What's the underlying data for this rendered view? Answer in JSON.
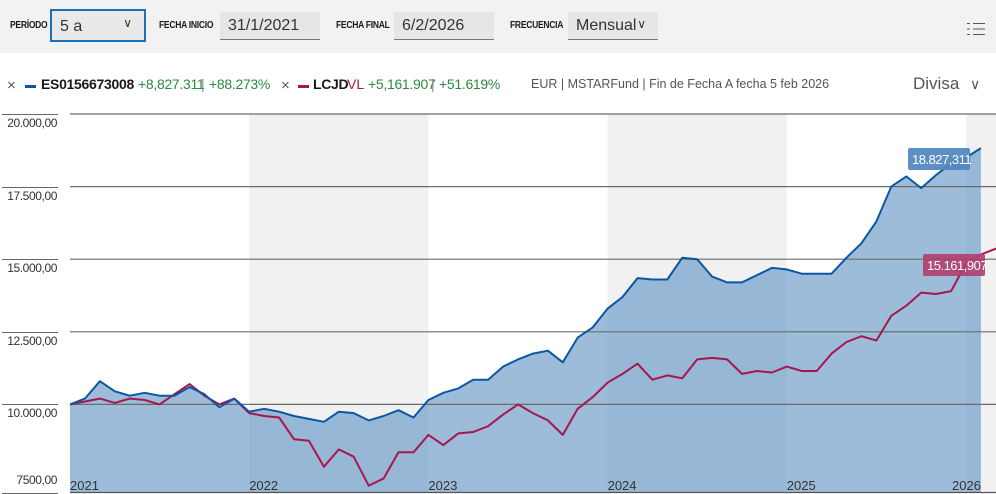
{
  "toolbar": {
    "periodo_label": "PERÍODO",
    "periodo_value": "5 a",
    "fecha_inicio_label": "FECHA INICIO",
    "fecha_inicio_value": "31/1/2021",
    "fecha_final_label": "FECHA FINAL",
    "fecha_final_value": "6/2/2026",
    "frecuencia_label": "FRECUENCIA",
    "frecuencia_value": "Mensual",
    "chevron": "∨",
    "menu_icon": "list-menu-icon"
  },
  "legend": {
    "remove_glyph": "×",
    "series": [
      {
        "name": "ES0156673008",
        "suffix": "",
        "change_abs": "+8,827.311",
        "change_pct": "+88.273%",
        "color": "#0b57a4"
      },
      {
        "name": "LCJD",
        "suffix": "VL",
        "change_abs": "+5,161.907",
        "change_pct": "+51.619%",
        "color": "#a8174b"
      }
    ],
    "separator": "|",
    "info": "EUR | MSTARFund | Fin de Fecha A fecha 5 feb 2026",
    "divisa_label": "Divisa",
    "divisa_chevron": "∨"
  },
  "colors": {
    "blue_line": "#0b57a4",
    "red_line": "#a8174b",
    "area_fill": "#97b8d8",
    "band": "#f1f1f1",
    "blue_tag": "#4f86bf",
    "red_tag": "#b0416f",
    "positive": "#2a8a3e"
  },
  "chart_data": {
    "type": "line",
    "title": "",
    "xlabel": "",
    "ylabel": "",
    "frequency": "monthly",
    "x_start": "2021-01",
    "x_end": "2026-02",
    "x_tick_labels": [
      "2021",
      "2022",
      "2023",
      "2024",
      "2025",
      "2026"
    ],
    "y_tick_labels": [
      "7500,00",
      "10.000,00",
      "12.500,00",
      "15.000,00",
      "17.500,00",
      "20.000,00"
    ],
    "y_ticks": [
      7500,
      10000,
      12500,
      15000,
      17500,
      20000
    ],
    "ylim": [
      7000,
      20000
    ],
    "grid": true,
    "legend_position": "top",
    "series": [
      {
        "name": "ES0156673008",
        "color": "#0b57a4",
        "filled_area": true,
        "end_label": "18.827,311",
        "values": [
          10000,
          10200,
          10800,
          10450,
          10300,
          10400,
          10300,
          10300,
          10600,
          10350,
          9900,
          10200,
          9750,
          9850,
          9750,
          9600,
          9500,
          9400,
          9750,
          9700,
          9450,
          9600,
          9800,
          9550,
          10150,
          10400,
          10550,
          10850,
          10850,
          11300,
          11550,
          11750,
          11850,
          11450,
          12300,
          12650,
          13300,
          13700,
          14350,
          14300,
          14300,
          15050,
          15000,
          14400,
          14200,
          14200,
          14450,
          14700,
          14650,
          14500,
          14500,
          14500,
          15050,
          15550,
          16300,
          17500,
          17850,
          17450,
          17900,
          18300,
          18500,
          18827
        ]
      },
      {
        "name": "LCJD VL",
        "color": "#a8174b",
        "filled_area": false,
        "end_label": "15.161,907",
        "values": [
          10000,
          10100,
          10200,
          10050,
          10200,
          10150,
          10000,
          10350,
          10700,
          10300,
          10000,
          10200,
          9700,
          9600,
          9550,
          8800,
          8750,
          7850,
          8450,
          8200,
          7200,
          7450,
          8350,
          8350,
          8950,
          8600,
          9000,
          9050,
          9250,
          9650,
          10000,
          9700,
          9450,
          8950,
          9850,
          10250,
          10750,
          11050,
          11400,
          10850,
          11000,
          10900,
          11550,
          11600,
          11550,
          11050,
          11150,
          11100,
          11300,
          11150,
          11150,
          11750,
          12150,
          12350,
          12200,
          13050,
          13400,
          13850,
          13800,
          13900,
          14850,
          15162
        ]
      }
    ]
  }
}
